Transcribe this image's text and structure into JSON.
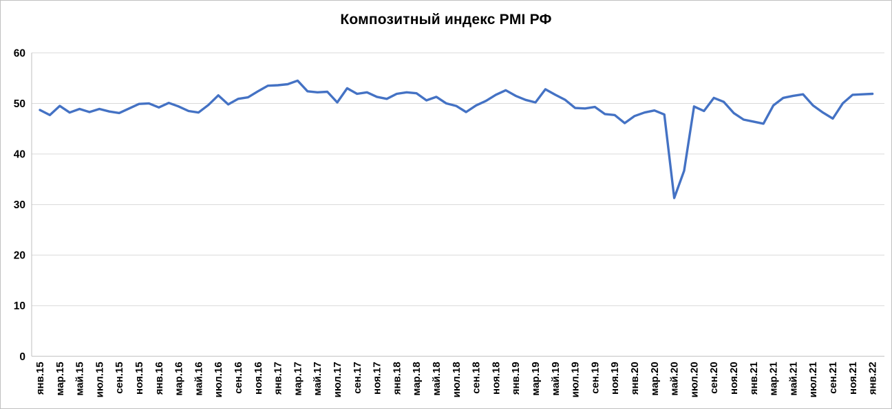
{
  "chart_data": {
    "type": "line",
    "title": "Композитный индекс PMI РФ",
    "series_name": "Композитный индекс PMI РФ",
    "legend": "none",
    "grid": "horizontal",
    "ylim": [
      0,
      60
    ],
    "y_ticks": [
      0,
      10,
      20,
      30,
      40,
      50,
      60
    ],
    "x_tick_every": 2,
    "line_color": "#4472C4",
    "gridline_color": "#d9d9d9",
    "axis_color": "#bfbfbf",
    "months": [
      "янв.15",
      "фев.15",
      "мар.15",
      "апр.15",
      "май.15",
      "июн.15",
      "июл.15",
      "авг.15",
      "сен.15",
      "окт.15",
      "ноя.15",
      "дек.15",
      "янв.16",
      "фев.16",
      "мар.16",
      "апр.16",
      "май.16",
      "июн.16",
      "июл.16",
      "авг.16",
      "сен.16",
      "окт.16",
      "ноя.16",
      "дек.16",
      "янв.17",
      "фев.17",
      "мар.17",
      "апр.17",
      "май.17",
      "июн.17",
      "июл.17",
      "авг.17",
      "сен.17",
      "окт.17",
      "ноя.17",
      "дек.17",
      "янв.18",
      "фев.18",
      "мар.18",
      "апр.18",
      "май.18",
      "июн.18",
      "июл.18",
      "авг.18",
      "сен.18",
      "окт.18",
      "ноя.18",
      "дек.18",
      "янв.19",
      "фев.19",
      "мар.19",
      "апр.19",
      "май.19",
      "июн.19",
      "июл.19",
      "авг.19",
      "сен.19",
      "окт.19",
      "ноя.19",
      "дек.19",
      "янв.20",
      "фев.20",
      "мар.20",
      "апр.20",
      "май.20",
      "июн.20",
      "июл.20",
      "авг.20",
      "сен.20",
      "окт.20",
      "ноя.20",
      "дек.20",
      "янв.21",
      "фев.21",
      "мар.21",
      "апр.21",
      "май.21",
      "июн.21",
      "июл.21",
      "авг.21",
      "сен.21",
      "окт.21",
      "ноя.21",
      "дек.21",
      "янв.22"
    ],
    "values": [
      48.7,
      47.7,
      49.5,
      48.2,
      48.9,
      48.3,
      48.9,
      48.4,
      48.1,
      49.0,
      49.9,
      50.0,
      49.2,
      50.1,
      49.4,
      48.5,
      48.2,
      49.7,
      51.6,
      49.8,
      50.9,
      51.2,
      52.4,
      53.5,
      53.6,
      53.8,
      54.5,
      52.4,
      52.2,
      52.3,
      50.2,
      53.0,
      51.9,
      52.2,
      51.3,
      50.9,
      51.9,
      52.2,
      52.0,
      50.6,
      51.3,
      50.0,
      49.5,
      48.3,
      49.6,
      50.5,
      51.7,
      52.6,
      51.5,
      50.7,
      50.2,
      52.8,
      51.7,
      50.7,
      49.1,
      49.0,
      49.3,
      47.9,
      47.7,
      46.1,
      47.5,
      48.2,
      48.6,
      47.8,
      31.3,
      36.7,
      49.4,
      48.5,
      51.1,
      50.3,
      48.1,
      46.8,
      46.4,
      46.0,
      49.6,
      51.1,
      51.5,
      51.8,
      49.6,
      48.2,
      47.0,
      50.0,
      51.7,
      51.8,
      51.9
    ]
  }
}
